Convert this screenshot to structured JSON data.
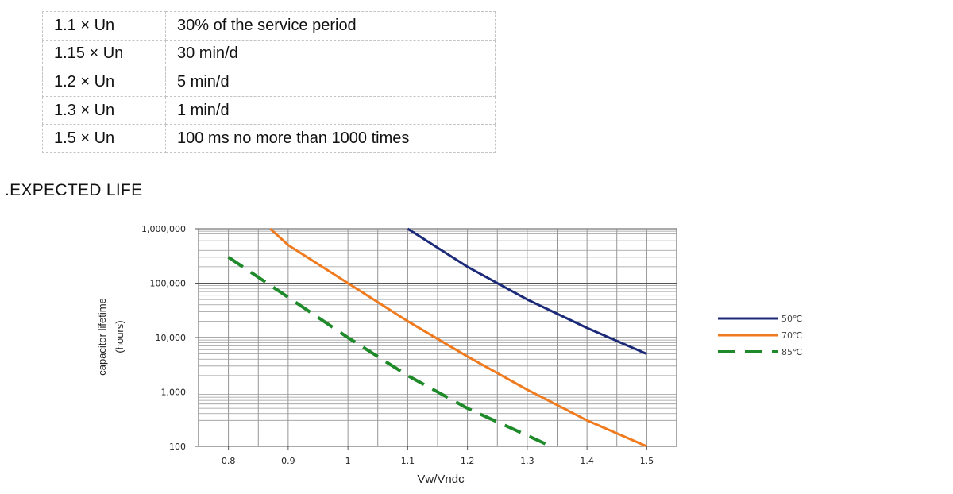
{
  "table": {
    "rows": [
      {
        "voltage": "1.1 × Un",
        "duration": "30% of the service period"
      },
      {
        "voltage": "1.15 × Un",
        "duration": "30 min/d"
      },
      {
        "voltage": "1.2 × Un",
        "duration": "5 min/d"
      },
      {
        "voltage": "1.3 × Un",
        "duration": "1 min/d"
      },
      {
        "voltage": "1.5 × Un",
        "duration": "100 ms no more than 1000 times"
      }
    ]
  },
  "section_title": ".EXPECTED LIFE",
  "chart_data": {
    "type": "line",
    "xlabel": "Vw/Vndc",
    "ylabel": [
      "capacitor lifetime",
      "(hours)"
    ],
    "xlim": [
      0.75,
      1.55
    ],
    "ylim": [
      100,
      1000000
    ],
    "yscale": "log",
    "grid": true,
    "legend_position": "right",
    "x_ticks": [
      {
        "value": 0.8,
        "label": "0.8"
      },
      {
        "value": 0.9,
        "label": "0.9"
      },
      {
        "value": 1.0,
        "label": "1"
      },
      {
        "value": 1.1,
        "label": "1.1"
      },
      {
        "value": 1.2,
        "label": "1.2"
      },
      {
        "value": 1.3,
        "label": "1.3"
      },
      {
        "value": 1.4,
        "label": "1.4"
      },
      {
        "value": 1.5,
        "label": "1.5"
      }
    ],
    "y_ticks": [
      {
        "value": 1000000,
        "label": "1,000,000"
      },
      {
        "value": 100000,
        "label": "100,000"
      },
      {
        "value": 10000,
        "label": "10,000"
      },
      {
        "value": 1000,
        "label": "1,000"
      },
      {
        "value": 100,
        "label": "100"
      }
    ],
    "series": [
      {
        "name": "50℃",
        "color": "#1c2a7a",
        "dashed": false,
        "points": [
          [
            1.1,
            1000000
          ],
          [
            1.2,
            200000
          ],
          [
            1.3,
            50000
          ],
          [
            1.4,
            15000
          ],
          [
            1.5,
            5000
          ]
        ]
      },
      {
        "name": "70℃",
        "color": "#f07a1e",
        "dashed": false,
        "points": [
          [
            0.87,
            1000000
          ],
          [
            0.9,
            500000
          ],
          [
            1.0,
            100000
          ],
          [
            1.1,
            20000
          ],
          [
            1.2,
            4500
          ],
          [
            1.3,
            1100
          ],
          [
            1.4,
            300
          ],
          [
            1.5,
            100
          ]
        ]
      },
      {
        "name": "85℃",
        "color": "#1f8a2a",
        "dashed": true,
        "points": [
          [
            0.8,
            300000
          ],
          [
            0.9,
            55000
          ],
          [
            1.0,
            10000
          ],
          [
            1.1,
            2000
          ],
          [
            1.2,
            500
          ],
          [
            1.34,
            100
          ]
        ]
      }
    ]
  }
}
